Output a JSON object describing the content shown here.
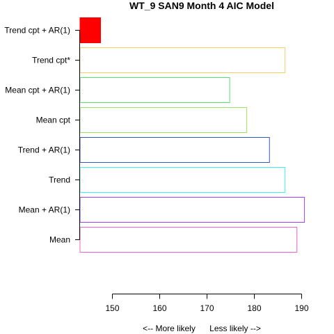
{
  "chart_data": {
    "type": "bar",
    "orientation": "horizontal",
    "title": "WT_9 SAN9 Month 4 AIC Model",
    "xlabel_left": "<--  More likely",
    "xlabel_right": "Less likely  -->",
    "xlim": [
      141,
      191.5
    ],
    "xticks": [
      150,
      160,
      170,
      180,
      190
    ],
    "categories": [
      "Trend cpt + AR(1)",
      "Trend cpt*",
      "Mean cpt + AR(1)",
      "Mean cpt",
      "Trend + AR(1)",
      "Trend",
      "Mean + AR(1)",
      "Mean"
    ],
    "values": [
      147.5,
      186.5,
      174.8,
      178.4,
      183.2,
      186.5,
      190.6,
      189.0
    ],
    "colors": [
      "#ff0000",
      "#f5d060",
      "#55e070",
      "#a0e060",
      "#3355cc",
      "#40f0f0",
      "#a040f0",
      "#f060d0"
    ],
    "filled": [
      true,
      false,
      false,
      false,
      false,
      false,
      false,
      false
    ]
  }
}
